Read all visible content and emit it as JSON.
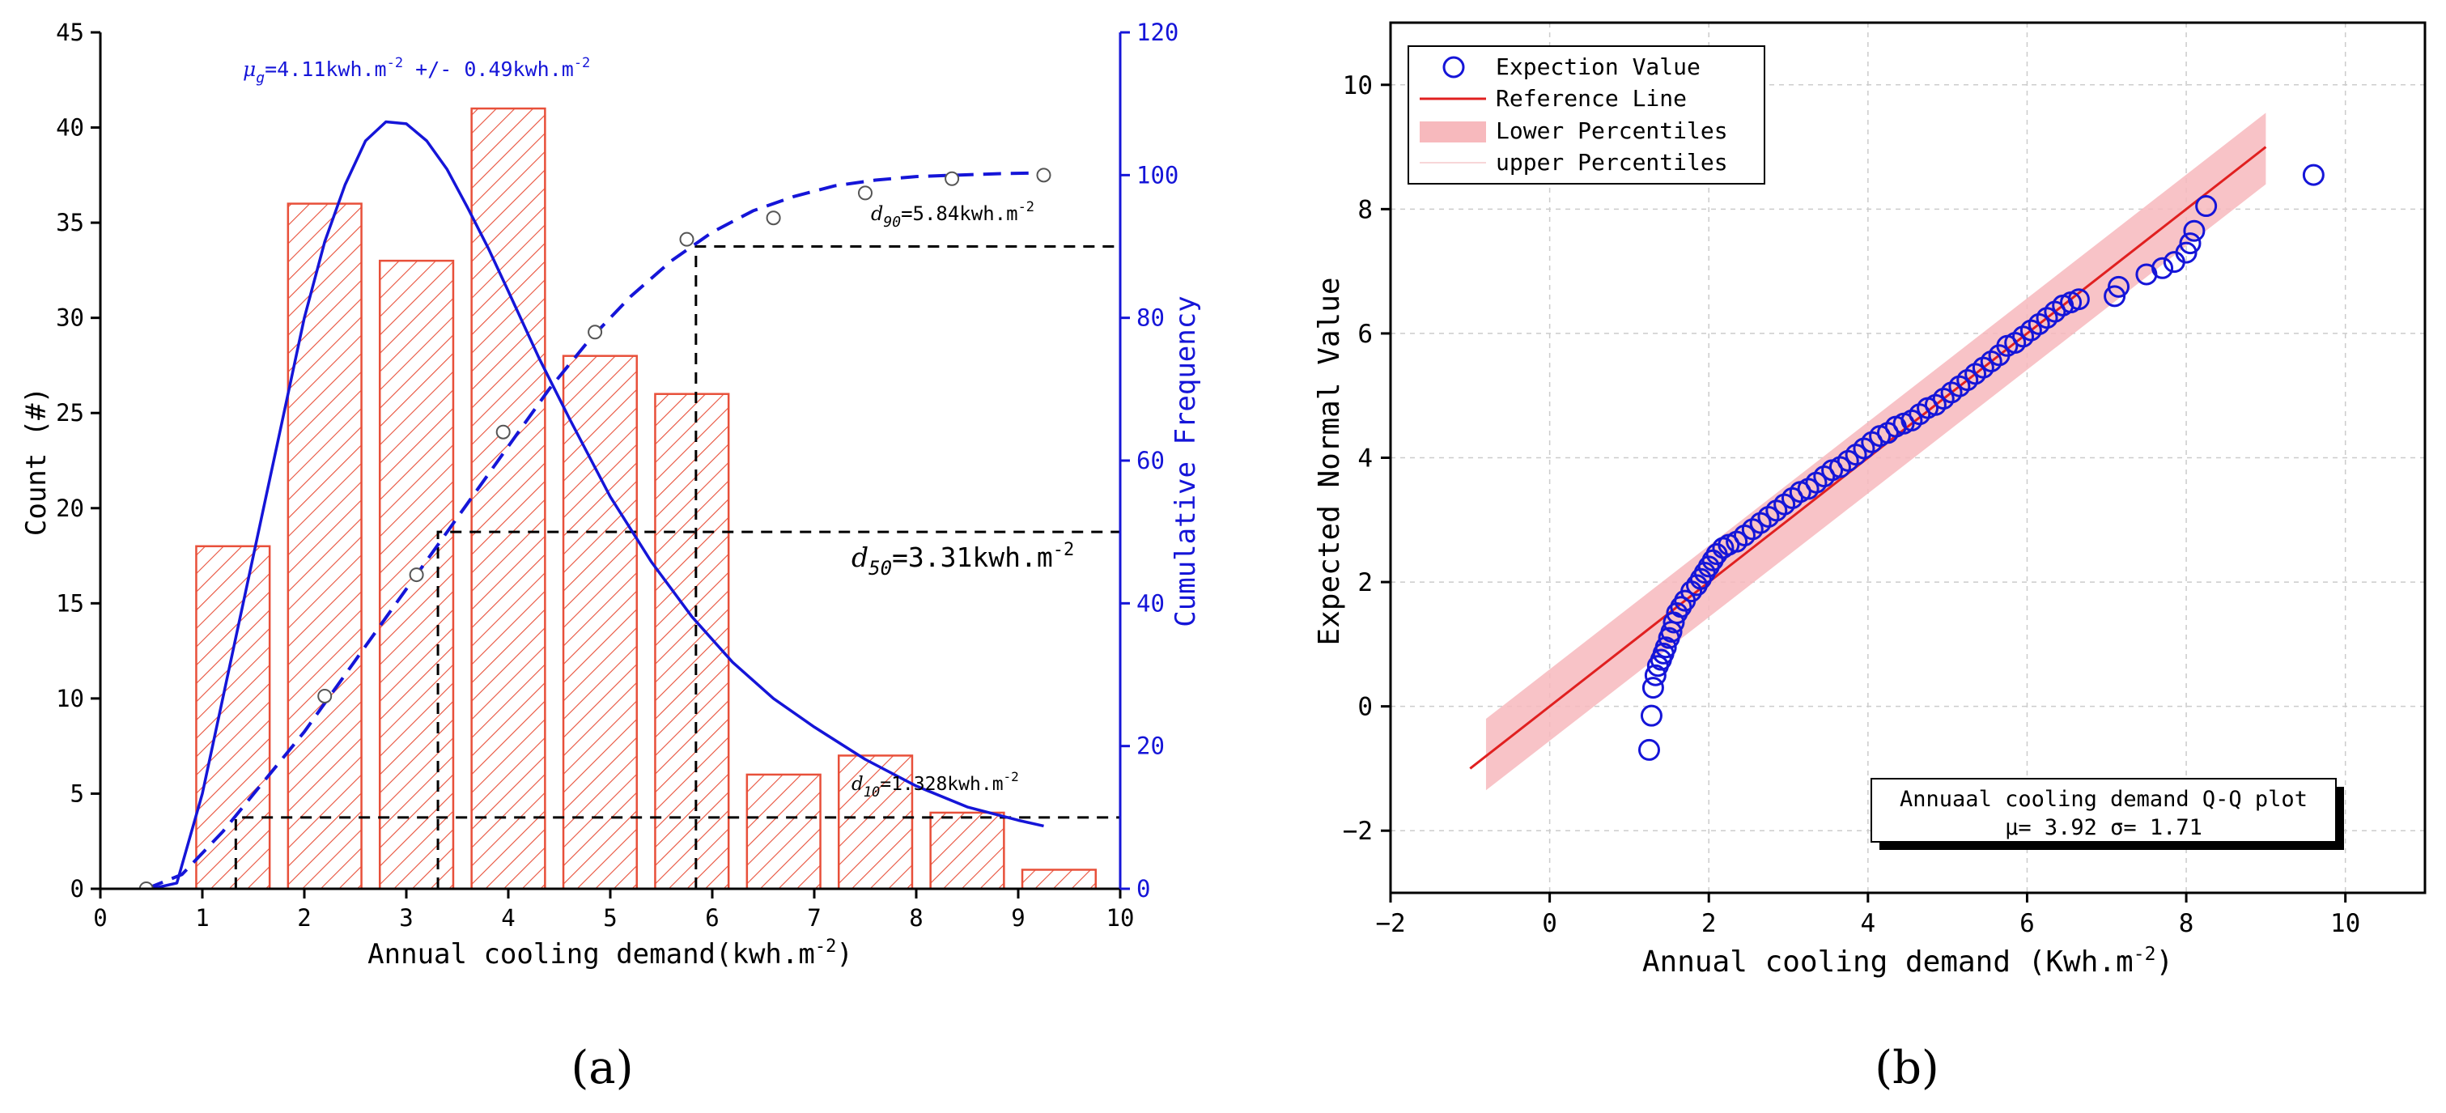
{
  "colors": {
    "bar_stroke": "#e8503a",
    "blue": "#1515d8",
    "red": "#e02020",
    "band": "#f7b9bd",
    "black": "#000000",
    "grid": "#cccccc"
  },
  "panel_labels": {
    "a": "(a)",
    "b": "(b)"
  },
  "chart_data": [
    {
      "type": "bar",
      "panel": "(a)",
      "xlabel": "Annual cooling demand(kwh.m",
      "xlabel_sup": "-2",
      "xlabel_end": ")",
      "ylabel": "Count (#)",
      "y2label": "Cumulative Frequency",
      "xlim": [
        0,
        10
      ],
      "ylim": [
        0,
        45
      ],
      "y2lim": [
        0,
        120
      ],
      "xticks": [
        0,
        1,
        2,
        3,
        4,
        5,
        6,
        7,
        8,
        9,
        10
      ],
      "yticks": [
        0,
        5,
        10,
        15,
        20,
        25,
        30,
        35,
        40,
        45
      ],
      "y2ticks": [
        0,
        20,
        40,
        60,
        80,
        100,
        120
      ],
      "bars": [
        {
          "center": 1.3,
          "value": 18
        },
        {
          "center": 2.2,
          "value": 36
        },
        {
          "center": 3.1,
          "value": 33
        },
        {
          "center": 4.0,
          "value": 41
        },
        {
          "center": 4.9,
          "value": 28
        },
        {
          "center": 5.8,
          "value": 26
        },
        {
          "center": 6.7,
          "value": 6
        },
        {
          "center": 7.6,
          "value": 7
        },
        {
          "center": 8.5,
          "value": 4
        },
        {
          "center": 9.4,
          "value": 1
        }
      ],
      "bar_width": 0.72,
      "cumulative_points": {
        "x": [
          0.45,
          2.2,
          3.1,
          3.95,
          4.85,
          5.75,
          6.6,
          7.5,
          8.35,
          9.25
        ],
        "y": [
          0,
          27,
          44,
          64,
          78,
          91,
          94,
          97.5,
          99.5,
          100
        ]
      },
      "pdf_curve": {
        "x": [
          0.5,
          0.75,
          1.0,
          1.2,
          1.4,
          1.6,
          1.8,
          2.0,
          2.2,
          2.4,
          2.6,
          2.8,
          3.0,
          3.2,
          3.4,
          3.6,
          3.8,
          4.0,
          4.3,
          4.6,
          5.0,
          5.4,
          5.8,
          6.2,
          6.6,
          7.0,
          7.5,
          8.0,
          8.5,
          9.0,
          9.25
        ],
        "y": [
          0,
          0.3,
          5,
          10,
          15,
          20,
          25,
          30,
          34,
          37,
          39.3,
          40.3,
          40.2,
          39.3,
          37.8,
          35.8,
          33.7,
          31.4,
          27.9,
          24.7,
          20.6,
          17.2,
          14.3,
          11.9,
          10,
          8.5,
          6.8,
          5.4,
          4.3,
          3.6,
          3.3
        ]
      },
      "cumulative_curve": {
        "x": [
          0.45,
          0.8,
          1.2,
          1.6,
          2.0,
          2.4,
          2.8,
          3.2,
          3.6,
          4.0,
          4.4,
          4.8,
          5.2,
          5.6,
          6.0,
          6.4,
          6.8,
          7.2,
          7.6,
          8.0,
          8.4,
          8.8,
          9.2
        ],
        "y": [
          0,
          2,
          8,
          15,
          22,
          30,
          38,
          46,
          54,
          62,
          70,
          77,
          83,
          88,
          92,
          95,
          97,
          98.5,
          99.3,
          99.8,
          100,
          100.2,
          100.3
        ]
      },
      "annotations": {
        "mu": {
          "prefix": "μ",
          "sub": "g",
          "text": "=4.11kwh.m",
          "sup": "-2",
          "text2": " +/- 0.49kwh.m",
          "sup2": "-2"
        },
        "d90": {
          "prefix": "d",
          "sub": "90",
          "text": "=5.84kwh.m",
          "sup": "-2",
          "x": 5.84,
          "y2": 90
        },
        "d50": {
          "prefix": "d",
          "sub": "50",
          "text": "=3.31kwh.m",
          "sup": "-2",
          "x": 3.31,
          "y2": 50
        },
        "d10": {
          "prefix": "d",
          "sub": "10",
          "text": "=1.328kwh.m",
          "sup": "-2",
          "x": 1.328,
          "y2": 10
        }
      }
    },
    {
      "type": "scatter",
      "panel": "(b)",
      "xlabel": "Annual cooling demand (Kwh.m",
      "xlabel_sup": "-2",
      "xlabel_end": ")",
      "ylabel": "Expected Normal Value",
      "xlim": [
        -2,
        11
      ],
      "ylim": [
        -3,
        11
      ],
      "xticks": [
        -2,
        0,
        2,
        4,
        6,
        8,
        10
      ],
      "yticks": [
        -2,
        0,
        2,
        4,
        6,
        8,
        10
      ],
      "grid": true,
      "legend": [
        {
          "label": "Expection Value",
          "kind": "circle"
        },
        {
          "label": "Reference Line",
          "kind": "line"
        },
        {
          "label": "Lower Percentiles",
          "kind": "band"
        },
        {
          "label": "upper Percentiles",
          "kind": "thin"
        }
      ],
      "reference_line": {
        "x": [
          -1,
          9
        ],
        "y": [
          -1,
          9
        ]
      },
      "band": {
        "x": [
          -0.8,
          9.0
        ],
        "upper_start": -0.2,
        "lower_start": -1.35,
        "upper_end": 9.55,
        "lower_end": 8.4
      },
      "stats_box": {
        "line1": "Annuaal cooling demand Q-Q plot",
        "line2": "μ= 3.92   σ= 1.71"
      },
      "points": {
        "x": [
          1.25,
          1.28,
          1.3,
          1.33,
          1.36,
          1.4,
          1.43,
          1.46,
          1.5,
          1.53,
          1.56,
          1.6,
          1.65,
          1.7,
          1.78,
          1.85,
          1.9,
          1.95,
          2.0,
          2.05,
          2.1,
          2.18,
          2.25,
          2.35,
          2.45,
          2.55,
          2.65,
          2.75,
          2.85,
          2.95,
          3.05,
          3.15,
          3.25,
          3.35,
          3.45,
          3.55,
          3.65,
          3.75,
          3.85,
          3.95,
          4.05,
          4.15,
          4.25,
          4.35,
          4.45,
          4.55,
          4.65,
          4.75,
          4.85,
          4.95,
          5.05,
          5.15,
          5.25,
          5.35,
          5.45,
          5.55,
          5.65,
          5.75,
          5.85,
          5.95,
          6.05,
          6.15,
          6.25,
          6.35,
          6.45,
          6.55,
          6.65,
          7.1,
          7.15,
          7.5,
          7.7,
          7.85,
          8.0,
          8.05,
          8.1,
          8.25,
          9.6
        ],
        "y": [
          -0.7,
          -0.15,
          0.3,
          0.5,
          0.65,
          0.75,
          0.85,
          0.95,
          1.1,
          1.2,
          1.35,
          1.5,
          1.6,
          1.7,
          1.85,
          1.95,
          2.05,
          2.15,
          2.25,
          2.35,
          2.45,
          2.55,
          2.6,
          2.65,
          2.75,
          2.85,
          2.95,
          3.05,
          3.15,
          3.25,
          3.35,
          3.45,
          3.5,
          3.6,
          3.7,
          3.8,
          3.85,
          3.95,
          4.05,
          4.15,
          4.25,
          4.35,
          4.4,
          4.5,
          4.55,
          4.6,
          4.7,
          4.8,
          4.85,
          4.95,
          5.05,
          5.15,
          5.25,
          5.35,
          5.45,
          5.55,
          5.65,
          5.8,
          5.85,
          5.95,
          6.05,
          6.15,
          6.25,
          6.35,
          6.45,
          6.5,
          6.55,
          6.6,
          6.75,
          6.95,
          7.05,
          7.15,
          7.3,
          7.45,
          7.65,
          8.05,
          8.55
        ]
      }
    }
  ]
}
